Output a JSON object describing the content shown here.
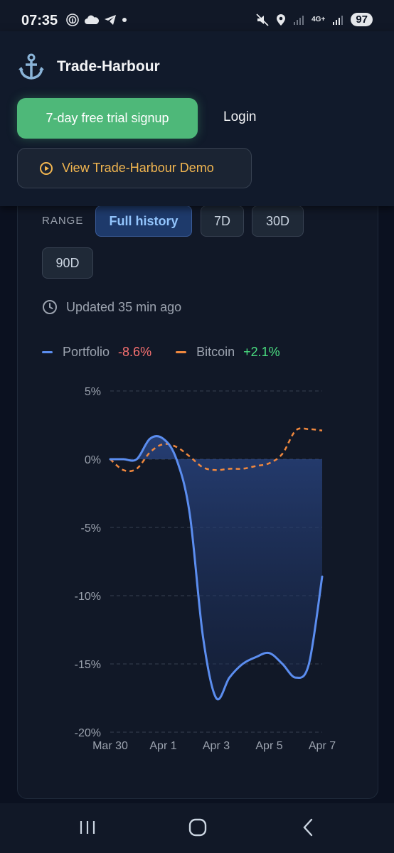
{
  "status_bar": {
    "time": "07:35",
    "network": "4G+",
    "battery": "97",
    "left_icons": [
      "fingerprint-icon",
      "cloud-icon",
      "telegram-icon",
      "dot-icon"
    ],
    "right_icons": [
      "mute-icon",
      "location-icon",
      "signal-icon",
      "signal-icon"
    ]
  },
  "header": {
    "brand_name": "Trade-Harbour",
    "brand_icon": "anchor-icon",
    "trial_button": "7-day free trial signup",
    "login_link": "Login",
    "demo_button": "View Trade-Harbour Demo",
    "colors": {
      "trial": "#4eb879",
      "demo_text": "#f2b650"
    }
  },
  "controls": {
    "range_label": "RANGE",
    "ranges": [
      {
        "label": "Full history",
        "active": true
      },
      {
        "label": "7D",
        "active": false
      },
      {
        "label": "30D",
        "active": false
      },
      {
        "label": "90D",
        "active": false
      }
    ],
    "updated": "Updated 35 min ago"
  },
  "legend": {
    "portfolio": {
      "label": "Portfolio",
      "delta": "-8.6%",
      "color": "#5b8def"
    },
    "bitcoin": {
      "label": "Bitcoin",
      "delta": "+2.1%",
      "color": "#f0883e"
    }
  },
  "chart_data": {
    "type": "line",
    "x": [
      "2024-03-30",
      "2024-03-30 12:00",
      "2024-03-31",
      "2024-03-31 12:00",
      "2024-04-01",
      "2024-04-01 12:00",
      "2024-04-02",
      "2024-04-02 12:00",
      "2024-04-03",
      "2024-04-03 12:00",
      "2024-04-04",
      "2024-04-04 12:00",
      "2024-04-05",
      "2024-04-05 12:00",
      "2024-04-06",
      "2024-04-06 12:00",
      "2024-04-07"
    ],
    "x_tick_labels": [
      "Mar 30",
      "Apr 1",
      "Apr 3",
      "Apr 5",
      "Apr 7"
    ],
    "series": [
      {
        "name": "Portfolio",
        "values": [
          0,
          0,
          0,
          1.5,
          1.5,
          0,
          -4,
          -13,
          -17.5,
          -16,
          -15,
          -14.5,
          -14.2,
          -15,
          -16,
          -15,
          -8.6
        ]
      },
      {
        "name": "Bitcoin",
        "values": [
          0,
          -0.8,
          -0.7,
          0.5,
          1.1,
          0.9,
          0.2,
          -0.6,
          -0.8,
          -0.7,
          -0.7,
          -0.5,
          -0.3,
          0.4,
          2.1,
          2.2,
          2.1
        ]
      }
    ],
    "yticks": [
      "5%",
      "0%",
      "-5%",
      "-10%",
      "-15%",
      "-20%"
    ],
    "ylim": [
      -20,
      5
    ],
    "grid": true,
    "legend_position": "top-left"
  },
  "nav": {
    "recents": "recents-icon",
    "home": "home-icon",
    "back": "back-icon"
  }
}
